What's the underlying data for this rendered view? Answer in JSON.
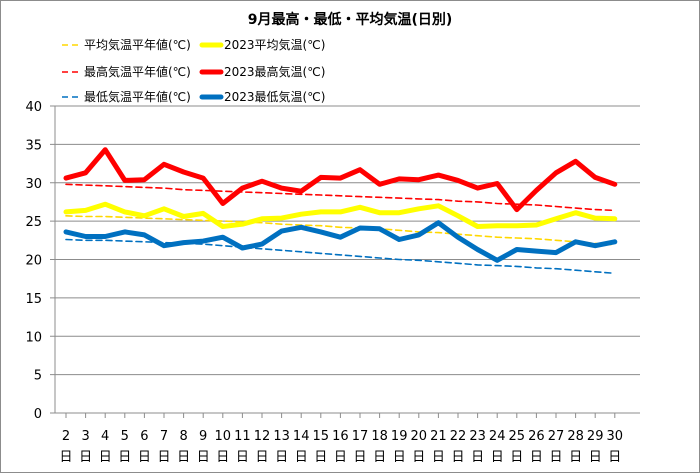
{
  "chart_data": {
    "type": "line",
    "title": "9月最高・最低・平均気温(日別)",
    "categories": [
      "2",
      "3",
      "4",
      "5",
      "6",
      "7",
      "8",
      "9",
      "10",
      "11",
      "12",
      "13",
      "14",
      "15",
      "16",
      "17",
      "18",
      "19",
      "20",
      "21",
      "22",
      "23",
      "24",
      "25",
      "26",
      "27",
      "28",
      "29",
      "30"
    ],
    "category_suffix": "日",
    "ylim": [
      0,
      40
    ],
    "yticks": [
      0,
      5,
      10,
      15,
      20,
      25,
      30,
      35,
      40
    ],
    "grid": true,
    "legend_position": "top-left",
    "series": [
      {
        "name": "平均気温平年値(℃)",
        "color": "#ffd700",
        "style": "dashed",
        "values": [
          25.7,
          25.6,
          25.6,
          25.5,
          25.4,
          25.3,
          25.2,
          25.1,
          25.0,
          24.9,
          24.8,
          24.6,
          24.5,
          24.4,
          24.2,
          24.1,
          24.0,
          23.8,
          23.6,
          23.5,
          23.3,
          23.1,
          22.9,
          22.8,
          22.7,
          22.5,
          22.3,
          22.1,
          21.9
        ]
      },
      {
        "name": "2023平均気温(℃)",
        "color": "#ffff00",
        "style": "solid",
        "values": [
          26.2,
          26.4,
          27.2,
          26.2,
          25.7,
          26.6,
          25.6,
          26.0,
          24.3,
          24.6,
          25.3,
          25.4,
          25.9,
          26.2,
          26.2,
          26.8,
          26.1,
          26.1,
          26.6,
          27.0,
          25.7,
          24.3,
          24.4,
          24.4,
          24.5,
          25.3,
          26.1,
          25.4,
          25.3
        ]
      },
      {
        "name": "最高気温平年値(℃)",
        "color": "#ff0000",
        "style": "dashed",
        "values": [
          29.8,
          29.7,
          29.6,
          29.5,
          29.4,
          29.3,
          29.1,
          29.0,
          28.9,
          28.8,
          28.7,
          28.6,
          28.5,
          28.4,
          28.3,
          28.2,
          28.1,
          28.0,
          27.9,
          27.8,
          27.6,
          27.5,
          27.3,
          27.2,
          27.1,
          26.9,
          26.7,
          26.5,
          26.4
        ]
      },
      {
        "name": "2023最高気温(℃)",
        "color": "#ff0000",
        "style": "solid",
        "values": [
          30.6,
          31.3,
          34.3,
          30.3,
          30.4,
          32.4,
          31.4,
          30.6,
          27.3,
          29.3,
          30.2,
          29.3,
          28.9,
          30.7,
          30.6,
          31.7,
          29.8,
          30.5,
          30.4,
          31.0,
          30.3,
          29.3,
          29.9,
          26.5,
          29.0,
          31.3,
          32.8,
          30.7,
          29.8
        ]
      },
      {
        "name": "最低気温平年値(℃)",
        "color": "#0070c0",
        "style": "dashed",
        "values": [
          22.6,
          22.5,
          22.5,
          22.4,
          22.3,
          22.2,
          22.1,
          22.0,
          21.8,
          21.6,
          21.4,
          21.2,
          21.0,
          20.8,
          20.6,
          20.4,
          20.2,
          20.0,
          19.9,
          19.7,
          19.5,
          19.3,
          19.2,
          19.1,
          18.9,
          18.8,
          18.6,
          18.4,
          18.2
        ]
      },
      {
        "name": "2023最低気温(℃)",
        "color": "#0070c0",
        "style": "solid",
        "values": [
          23.6,
          23.0,
          23.0,
          23.6,
          23.2,
          21.8,
          22.2,
          22.4,
          22.9,
          21.5,
          22.0,
          23.7,
          24.2,
          23.6,
          22.9,
          24.1,
          24.0,
          22.6,
          23.2,
          24.8,
          22.9,
          21.3,
          19.9,
          21.3,
          21.1,
          20.9,
          22.3,
          21.8,
          22.3
        ]
      }
    ]
  }
}
